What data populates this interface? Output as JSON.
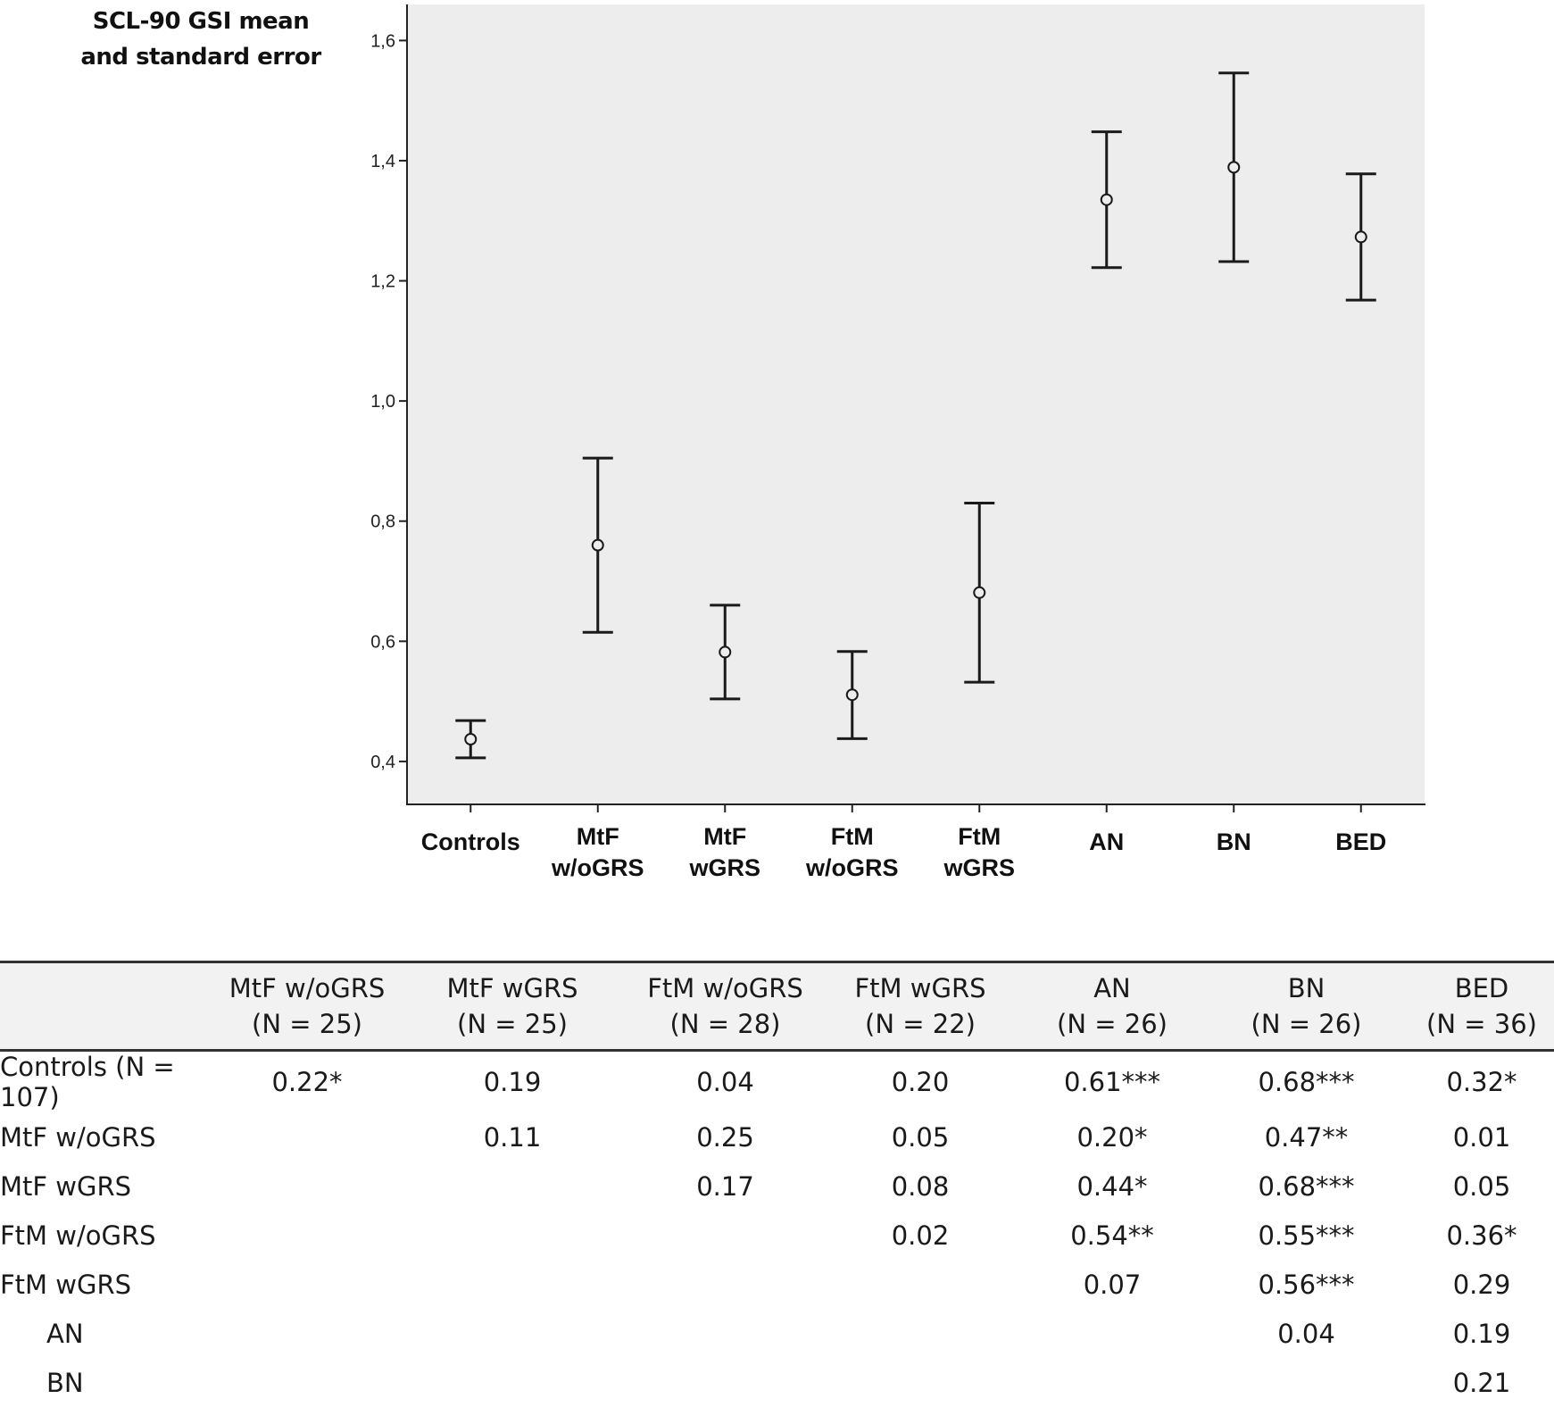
{
  "chart_data": {
    "type": "error_bar",
    "ylabel": "SCL-90 GSI mean\nand standard error",
    "ylim": [
      0.33,
      1.66
    ],
    "yticks": [
      {
        "value": 0.4,
        "label": "0,4"
      },
      {
        "value": 0.6,
        "label": "0,6"
      },
      {
        "value": 0.8,
        "label": "0,8"
      },
      {
        "value": 1.0,
        "label": "1,0"
      },
      {
        "value": 1.2,
        "label": "1,2"
      },
      {
        "value": 1.4,
        "label": "1,4"
      },
      {
        "value": 1.6,
        "label": "1,6"
      }
    ],
    "categories": [
      "Controls",
      "MtF\nw/oGRS",
      "MtF\nwGRS",
      "FtM\nw/oGRS",
      "FtM\nwGRS",
      "AN",
      "BN",
      "BED"
    ],
    "means": [
      0.437,
      0.76,
      0.582,
      0.511,
      0.681,
      1.335,
      1.389,
      1.273
    ],
    "lower": [
      0.406,
      0.615,
      0.504,
      0.438,
      0.532,
      1.222,
      1.232,
      1.168
    ],
    "upper": [
      0.468,
      0.905,
      0.66,
      0.583,
      0.83,
      1.448,
      1.546,
      1.378
    ],
    "colors": {
      "plot_background": "#ededed",
      "marks": "#1a1a1a"
    }
  },
  "table": {
    "columns": [
      {
        "name": "MtF w/oGRS",
        "n": "(N = 25)"
      },
      {
        "name": "MtF wGRS",
        "n": "(N = 25)"
      },
      {
        "name": "FtM w/oGRS",
        "n": "(N = 28)"
      },
      {
        "name": "FtM wGRS",
        "n": "(N = 22)"
      },
      {
        "name": "AN",
        "n": "(N = 26)"
      },
      {
        "name": "BN",
        "n": "(N = 26)"
      },
      {
        "name": "BED",
        "n": "(N = 36)"
      }
    ],
    "rows": [
      {
        "label": "Controls (N = 107)",
        "cells": [
          "0.22*",
          "0.19",
          "0.04",
          "0.20",
          "0.61***",
          "0.68***",
          "0.32*"
        ]
      },
      {
        "label": "MtF w/oGRS",
        "cells": [
          "",
          "0.11",
          "0.25",
          "0.05",
          "0.20*",
          "0.47**",
          "0.01"
        ]
      },
      {
        "label": "MtF wGRS",
        "cells": [
          "",
          "",
          "0.17",
          "0.08",
          "0.44*",
          "0.68***",
          "0.05"
        ]
      },
      {
        "label": "FtM w/oGRS",
        "cells": [
          "",
          "",
          "",
          "0.02",
          "0.54**",
          "0.55***",
          "0.36*"
        ]
      },
      {
        "label": "FtM wGRS",
        "cells": [
          "",
          "",
          "",
          "",
          "0.07",
          "0.56***",
          "0.29"
        ]
      },
      {
        "label": "AN",
        "cells": [
          "",
          "",
          "",
          "",
          "",
          "0.04",
          "0.19"
        ]
      },
      {
        "label": "BN",
        "cells": [
          "",
          "",
          "",
          "",
          "",
          "",
          "0.21"
        ]
      }
    ]
  }
}
